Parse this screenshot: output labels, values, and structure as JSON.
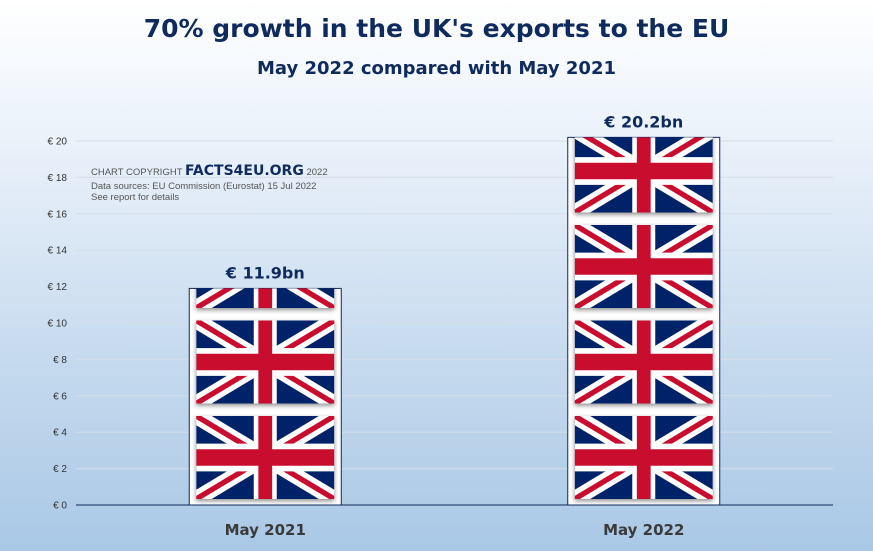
{
  "chart_data": {
    "type": "bar",
    "title": "70% growth in the UK's exports to the EU",
    "subtitle": "May 2022 compared with May 2021",
    "categories": [
      "May 2021",
      "May 2022"
    ],
    "values": [
      11.9,
      20.2
    ],
    "value_labels": [
      "€ 11.9bn",
      "€ 20.2bn"
    ],
    "y_ticks": [
      "€ 0",
      "€ 2",
      "€ 4",
      "€ 6",
      "€ 8",
      "€ 10",
      "€ 12",
      "€ 14",
      "€ 16",
      "€ 18",
      "€ 20"
    ],
    "ylim": [
      0,
      20
    ],
    "grid": true,
    "bar_fill": "union-jack-flag",
    "colors": {
      "title": "#0f2a5c",
      "flag_blue": "#012169",
      "flag_red": "#c8102e",
      "grid": "#d5dde8"
    }
  },
  "copyright": {
    "prefix": "CHART COPYRIGHT",
    "brand": "FACTS4EU.ORG",
    "year": "2022",
    "source": "Data sources: EU Commission (Eurostat) 15 Jul 2022",
    "note": "See report for details"
  }
}
